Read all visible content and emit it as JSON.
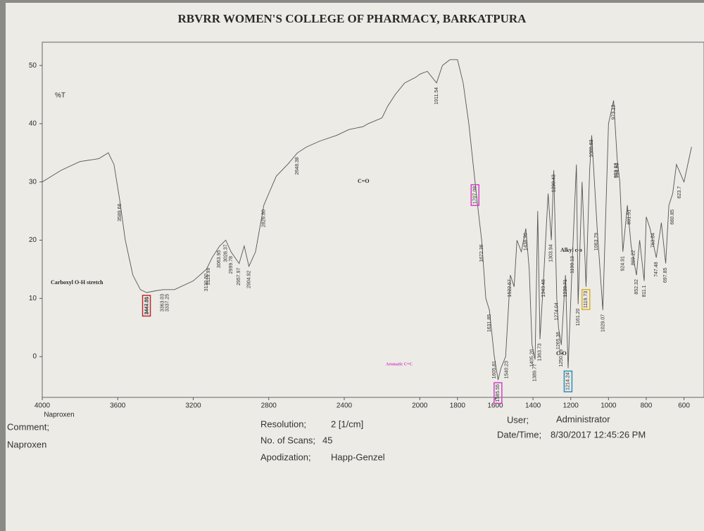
{
  "chart_data": {
    "type": "line",
    "title": "RBVRR WOMEN'S COLLEGE OF PHARMACY, BARKATPURA",
    "ylabel": "%T",
    "xlabel": "Naproxen",
    "color": "#555555",
    "xlim": [
      4000,
      550
    ],
    "ylim": [
      -7,
      54
    ],
    "xticks": [
      4000,
      3600,
      3200,
      2800,
      2400,
      2000,
      1800,
      1600,
      1400,
      1200,
      1000,
      800,
      600
    ],
    "yticks": [
      0,
      10,
      20,
      30,
      40,
      50
    ],
    "x": [
      4000,
      3900,
      3800,
      3700,
      3650,
      3620,
      3590,
      3560,
      3520,
      3480,
      3447,
      3400,
      3360,
      3300,
      3200,
      3130,
      3100,
      3060,
      3028,
      3000,
      2957,
      2930,
      2905,
      2870,
      2826,
      2800,
      2760,
      2700,
      2648,
      2600,
      2531,
      2440,
      2375,
      2300,
      2274,
      2200,
      2170,
      2130,
      2080,
      2020,
      2000,
      1960,
      1911,
      1880,
      1840,
      1800,
      1770,
      1740,
      1707,
      1690,
      1672,
      1650,
      1631,
      1605,
      1585,
      1570,
      1545,
      1520,
      1500,
      1485,
      1462,
      1438,
      1420,
      1405,
      1389,
      1375,
      1363,
      1343,
      1320,
      1303,
      1290,
      1274,
      1265,
      1250,
      1228,
      1214,
      1190,
      1170,
      1161,
      1140,
      1119,
      1100,
      1089,
      1060,
      1030,
      1000,
      973,
      954,
      940,
      924,
      900,
      880,
      852,
      835,
      811,
      800,
      780,
      747,
      720,
      697,
      680,
      660,
      640,
      600,
      560
    ],
    "values": [
      30,
      32,
      33.5,
      34,
      35,
      33,
      27,
      20,
      14,
      11.5,
      11,
      11.3,
      11.5,
      11.5,
      13,
      15,
      17,
      19,
      20,
      18,
      16,
      19,
      15.5,
      18,
      26,
      28,
      31,
      33,
      35,
      36,
      37,
      38,
      39,
      39.5,
      40,
      41,
      43,
      45,
      47,
      48,
      48.5,
      49,
      47,
      50,
      51,
      51,
      47,
      40,
      30,
      25,
      20,
      10,
      8,
      0,
      -4,
      -2,
      0,
      14,
      12,
      20,
      18,
      22,
      15,
      2,
      -0.5,
      25,
      3,
      14,
      28,
      20,
      32,
      10,
      5,
      2,
      14,
      -2,
      18,
      33,
      9,
      30,
      12,
      32,
      38,
      22,
      8,
      40,
      44,
      34,
      30,
      18,
      26,
      19,
      14,
      20,
      13,
      24,
      22,
      17,
      23,
      16,
      26,
      28,
      33,
      30,
      36
    ],
    "peaks": [
      {
        "x": 3589.66,
        "y": 27
      },
      {
        "x": 3447.81,
        "y": 11,
        "box": "#c0282d"
      },
      {
        "x": 3444.05,
        "y": 11
      },
      {
        "x": 3363.03,
        "y": 11.5
      },
      {
        "x": 3337.25,
        "y": 11.5
      },
      {
        "x": {
          "value": 3130.6,
          "label": "3130.60"
        },
        "y": 15
      },
      {
        "x": 3119.99,
        "y": 16
      },
      {
        "x": 3063.95,
        "y": 19
      },
      {
        "x": 3028.37,
        "y": 20
      },
      {
        "x": 2999.78,
        "y": 18
      },
      {
        "x": 2957.97,
        "y": 16
      },
      {
        "x": 2904.92,
        "y": 15.5
      },
      {
        "x": {
          "value": 2826.8,
          "label": "2826.80"
        },
        "y": 26
      },
      {
        "x": 2648.38,
        "y": 35
      },
      {
        "x": 1911.54,
        "y": 47
      },
      {
        "x": 1707.08,
        "y": 30,
        "box": "#d23fc8"
      },
      {
        "x": 1672.36,
        "y": 20
      },
      {
        "x": 1631.85,
        "y": 8
      },
      {
        "x": 1605.81,
        "y": 0
      },
      {
        "x": 1585.55,
        "y": -4,
        "box": "#d23fc8"
      },
      {
        "x": 1540.23,
        "y": 0
      },
      {
        "x": 1522.67,
        "y": 14
      },
      {
        "x": 1438.96,
        "y": 22
      },
      {
        "x": {
          "value": 1405.2,
          "label": "1405.20"
        },
        "y": 2
      },
      {
        "x": 1389.77,
        "y": -0.5
      },
      {
        "x": 1363.73,
        "y": 3
      },
      {
        "x": 1343.48,
        "y": 14
      },
      {
        "x": 1303.94,
        "y": 20
      },
      {
        "x": 1290.43,
        "y": 32
      },
      {
        "x": 1274.04,
        "y": 10
      },
      {
        "x": 1265.36,
        "y": 5
      },
      {
        "x": 1250.89,
        "y": 2
      },
      {
        "x": 1228.71,
        "y": 14
      },
      {
        "x": 1214.24,
        "y": -2,
        "box": "#2a8fc0"
      },
      {
        "x": 1190.13,
        "y": 18
      },
      {
        "x": {
          "value": 1161.2,
          "label": "1161.20"
        },
        "y": 9
      },
      {
        "x": 1119.73,
        "y": 12,
        "box": "#e0b020"
      },
      {
        "x": 1089.83,
        "y": 38
      },
      {
        "x": 1063.79,
        "y": 22
      },
      {
        "x": 1029.07,
        "y": 8
      },
      {
        "x": 973.13,
        "y": 44
      },
      {
        "x": 959.63,
        "y": 34
      },
      {
        "x": {
          "value": 954.8,
          "label": "954.80"
        },
        "y": 34
      },
      {
        "x": 924.91,
        "y": 18
      },
      {
        "x": 891.51,
        "y": 26
      },
      {
        "x": 869.22,
        "y": 19
      },
      {
        "x": 852.32,
        "y": 14
      },
      {
        "x": 811.1,
        "y": 13
      },
      {
        "x": 763.84,
        "y": 22
      },
      {
        "x": 747.48,
        "y": 17
      },
      {
        "x": 697.85,
        "y": 16
      },
      {
        "x": 660.85,
        "y": 26
      },
      {
        "x": 623.7,
        "y": 30
      }
    ],
    "annotations": [
      "Carboxyl O-H stretch",
      "C=O",
      "C-O",
      "Alkyl c-o",
      "Aromatic C=C"
    ],
    "footer": {
      "comment_label": "Comment;",
      "comment": "Naproxen",
      "resolution_label": "Resolution;",
      "resolution": "2 [1/cm]",
      "scans_label": "No. of Scans;",
      "scans": 45,
      "apodization_label": "Apodization;",
      "apodization": "Happ-Genzel",
      "user_label": "User;",
      "user": "Administrator",
      "datetime_label": "Date/Time;",
      "datetime": "8/30/2017 12:45:26 PM"
    }
  }
}
